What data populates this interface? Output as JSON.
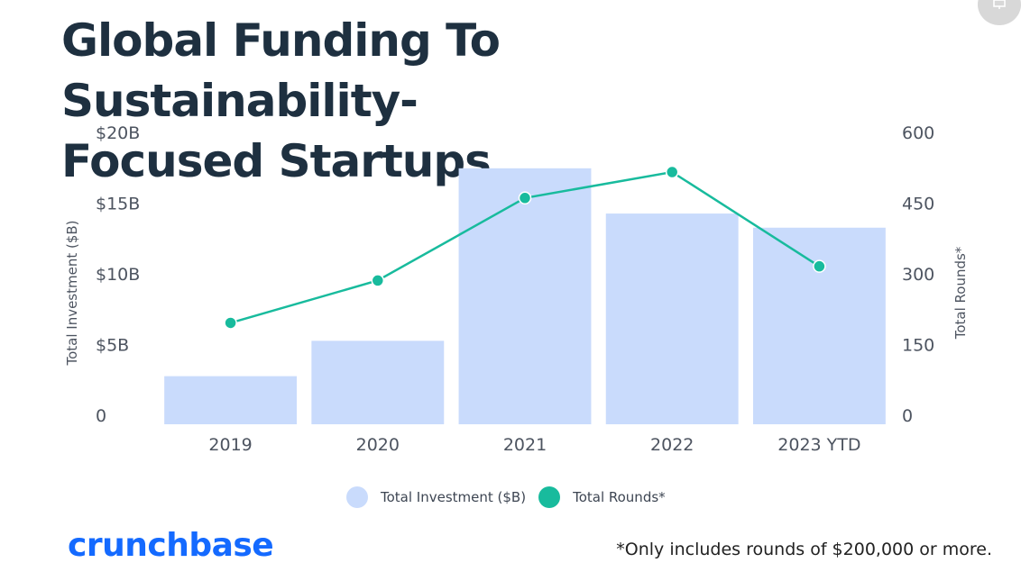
{
  "header": {
    "title_line1": "Global Funding To Sustainability-",
    "title_line2": "Focused Startups"
  },
  "chart_data": {
    "type": "bar",
    "title": "Global Funding To Sustainability-Focused Startups",
    "categories": [
      "2019",
      "2020",
      "2021",
      "2022",
      "2023 YTD"
    ],
    "series": [
      {
        "name": "Total Investment ($B)",
        "type": "bar",
        "axis": "left",
        "color": "#c9dbfc",
        "values": [
          3.4,
          5.9,
          18.1,
          14.9,
          13.9
        ]
      },
      {
        "name": "Total Rounds*",
        "type": "line",
        "axis": "right",
        "color": "#18bb9d",
        "values": [
          215,
          305,
          480,
          535,
          335
        ]
      }
    ],
    "left_axis": {
      "label": "Total Investment ($B)",
      "ylim": [
        0,
        20
      ],
      "ticks": [
        {
          "value": 0,
          "label": "0"
        },
        {
          "value": 5,
          "label": "$5B"
        },
        {
          "value": 10,
          "label": "$10B"
        },
        {
          "value": 15,
          "label": "$15B"
        },
        {
          "value": 20,
          "label": "$20B"
        }
      ]
    },
    "right_axis": {
      "label": "Total Rounds*",
      "ylim": [
        0,
        600
      ],
      "ticks": [
        {
          "value": 0,
          "label": "0"
        },
        {
          "value": 150,
          "label": "150"
        },
        {
          "value": 300,
          "label": "300"
        },
        {
          "value": 450,
          "label": "450"
        },
        {
          "value": 600,
          "label": "600"
        }
      ]
    },
    "grid": false,
    "legend_position": "bottom-center"
  },
  "legend": {
    "investment_label": "Total Investment ($B)",
    "rounds_label": "Total Rounds*"
  },
  "footer": {
    "brand": "crunchbase",
    "footnote": "*Only includes rounds of $200,000 or more."
  },
  "colors": {
    "title": "#1e3040",
    "bar": "#c9dbfc",
    "line": "#18bb9d",
    "brand": "#146aff"
  },
  "icons": {
    "corner": "monitor-icon"
  }
}
